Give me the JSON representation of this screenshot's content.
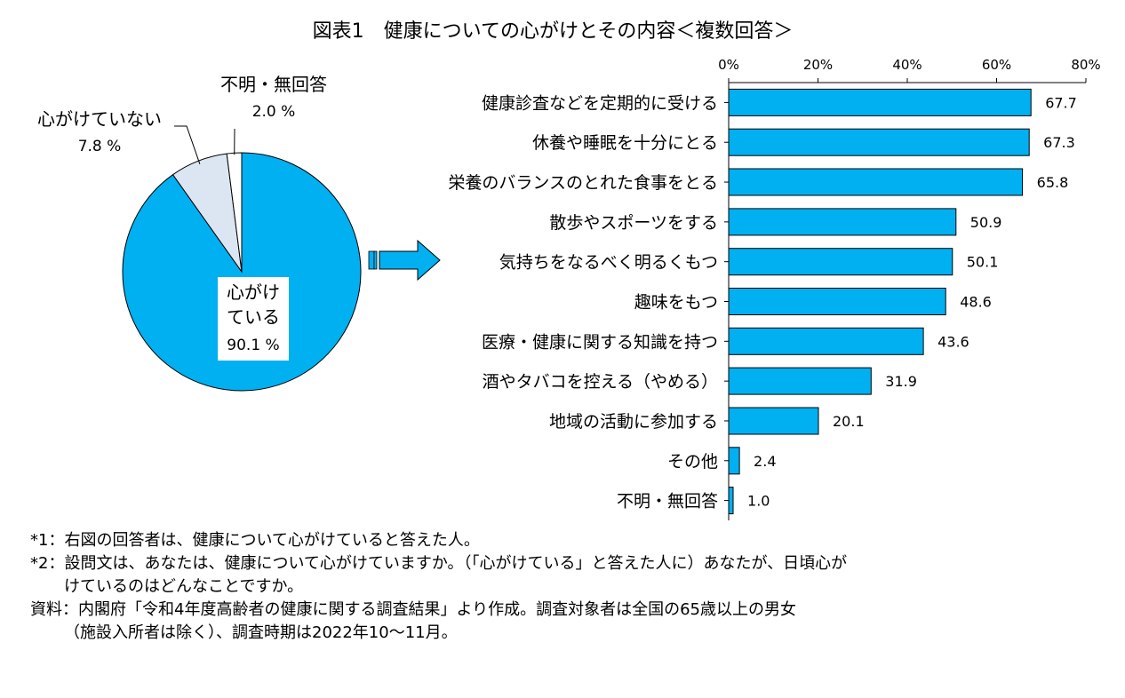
{
  "title": "図表1　健康についての心がけとその内容＜複数回答＞",
  "chart_data": [
    {
      "type": "pie",
      "slices": [
        {
          "label": "心がけ\nている",
          "value_label": "90.1 %",
          "value": 90.1,
          "color": "#00B0F0"
        },
        {
          "label": "心がけていない",
          "value_label": "7.8 %",
          "value": 7.8,
          "color": "#DCE6F2"
        },
        {
          "label": "不明・無回答",
          "value_label": "2.0 %",
          "value": 2.0,
          "color": "#FFFFFF"
        }
      ]
    },
    {
      "type": "bar",
      "orientation": "horizontal",
      "color": "#00B0F0",
      "categories": [
        "健康診査などを定期的に受ける",
        "休養や睡眠を十分にとる",
        "栄養のバランスのとれた食事をとる",
        "散歩やスポーツをする",
        "気持ちをなるべく明るくもつ",
        "趣味をもつ",
        "医療・健康に関する知識を持つ",
        "酒やタバコを控える（やめる）",
        "地域の活動に参加する",
        "その他",
        "不明・無回答"
      ],
      "values": [
        67.7,
        67.3,
        65.8,
        50.9,
        50.1,
        48.6,
        43.6,
        31.9,
        20.1,
        2.4,
        1.0
      ],
      "value_labels": [
        "67.7",
        "67.3",
        "65.8",
        "50.9",
        "50.1",
        "48.6",
        "43.6",
        "31.9",
        "20.1",
        "2.4",
        "1.0"
      ],
      "xlim": [
        0,
        80
      ],
      "ticks": [
        0,
        20,
        40,
        60,
        80
      ],
      "tick_labels": [
        "0%",
        "20%",
        "40%",
        "60%",
        "80%"
      ],
      "grid": false
    }
  ],
  "notes": [
    "*1：右図の回答者は、健康について心がけていると答えた人。",
    "*2：設問文は、あなたは、健康について心がけていますか。（「心がけている」と答えた人に）あなたが、日頃心が",
    "けているのはどんなことですか。",
    "資料：内閣府「令和4年度高齢者の健康に関する調査結果」より作成。調査対象者は全国の65歳以上の男女",
    "（施設入所者は除く）、調査時期は2022年10～11月。"
  ]
}
